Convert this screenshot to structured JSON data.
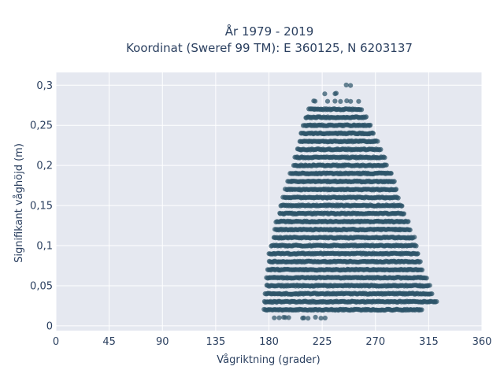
{
  "chart_data": {
    "type": "scatter",
    "title": "År 1979 - 2019",
    "subtitle": "Koordinat (Sweref 99 TM): E 360125, N 6203137",
    "xlabel": "Vågriktning (grader)",
    "ylabel": "Signifikant våghöjd (m)",
    "xlim": [
      0,
      360
    ],
    "ylim": [
      -0.006,
      0.316
    ],
    "xticks": [
      0,
      45,
      90,
      135,
      180,
      225,
      270,
      315,
      360
    ],
    "xtick_labels": [
      "0",
      "45",
      "90",
      "135",
      "180",
      "225",
      "270",
      "315",
      "360"
    ],
    "yticks": [
      0,
      0.05,
      0.1,
      0.15,
      0.2,
      0.25,
      0.3
    ],
    "ytick_labels": [
      "0",
      "0,05",
      "0,1",
      "0,15",
      "0,2",
      "0,25",
      "0,3"
    ],
    "grid": true,
    "legend": "none",
    "point_color": "#2e5469",
    "background": "#e5e8f0",
    "bands": [
      {
        "y": 0.01,
        "x_min": 185,
        "x_max": 232,
        "pattern": "sparse"
      },
      {
        "y": 0.02,
        "x_min": 176,
        "x_max": 310
      },
      {
        "y": 0.03,
        "x_min": 176,
        "x_max": 322
      },
      {
        "y": 0.04,
        "x_min": 177,
        "x_max": 318
      },
      {
        "y": 0.05,
        "x_min": 178,
        "x_max": 316
      },
      {
        "y": 0.06,
        "x_min": 178,
        "x_max": 313
      },
      {
        "y": 0.07,
        "x_min": 179,
        "x_max": 310
      },
      {
        "y": 0.08,
        "x_min": 180,
        "x_max": 308
      },
      {
        "y": 0.09,
        "x_min": 180,
        "x_max": 306
      },
      {
        "y": 0.1,
        "x_min": 182,
        "x_max": 305
      },
      {
        "y": 0.11,
        "x_min": 184,
        "x_max": 303
      },
      {
        "y": 0.12,
        "x_min": 185,
        "x_max": 300
      },
      {
        "y": 0.13,
        "x_min": 186,
        "x_max": 298
      },
      {
        "y": 0.14,
        "x_min": 189,
        "x_max": 295
      },
      {
        "y": 0.15,
        "x_min": 190,
        "x_max": 293
      },
      {
        "y": 0.16,
        "x_min": 192,
        "x_max": 290
      },
      {
        "y": 0.17,
        "x_min": 194,
        "x_max": 288
      },
      {
        "y": 0.18,
        "x_min": 196,
        "x_max": 286
      },
      {
        "y": 0.19,
        "x_min": 198,
        "x_max": 284
      },
      {
        "y": 0.2,
        "x_min": 201,
        "x_max": 280
      },
      {
        "y": 0.21,
        "x_min": 202,
        "x_max": 278
      },
      {
        "y": 0.22,
        "x_min": 204,
        "x_max": 275
      },
      {
        "y": 0.23,
        "x_min": 206,
        "x_max": 272
      },
      {
        "y": 0.24,
        "x_min": 207,
        "x_max": 269
      },
      {
        "y": 0.25,
        "x_min": 209,
        "x_max": 266
      },
      {
        "y": 0.26,
        "x_min": 211,
        "x_max": 263
      },
      {
        "y": 0.27,
        "x_min": 214,
        "x_max": 259
      },
      {
        "y": 0.28,
        "x_min": 217,
        "x_max": 256,
        "pattern": "sparse"
      },
      {
        "y": 0.29,
        "x_min": 222,
        "x_max": 253,
        "pattern": "sparse"
      },
      {
        "y": 0.3,
        "x_min": 232,
        "x_max": 253,
        "pattern": "sparse"
      }
    ]
  }
}
